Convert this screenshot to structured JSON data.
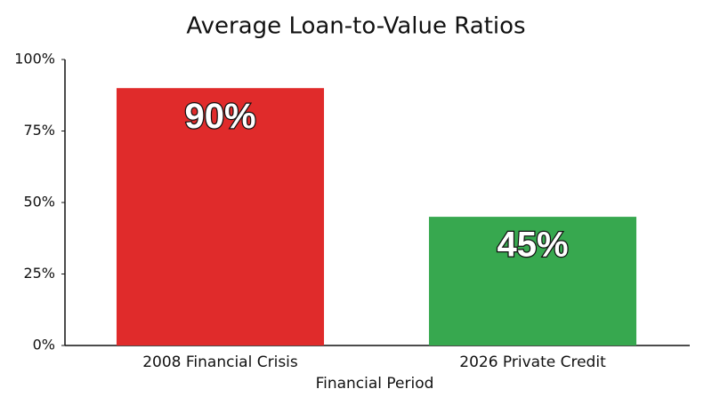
{
  "chart_data": {
    "type": "bar",
    "title": "Average Loan-to-Value Ratios",
    "x_label": "Financial Period",
    "categories": [
      "2008 Financial Crisis",
      "2026 Private Credit"
    ],
    "values": [
      90,
      45
    ],
    "value_labels": [
      "90%",
      "45%"
    ],
    "colors": [
      "#e02b2b",
      "#37a84f"
    ],
    "ylim": [
      0,
      100
    ],
    "yticks": [
      {
        "value": 0,
        "label": "0%"
      },
      {
        "value": 25,
        "label": "25%"
      },
      {
        "value": 50,
        "label": "50%"
      },
      {
        "value": 75,
        "label": "75%"
      },
      {
        "value": 100,
        "label": "100%"
      }
    ],
    "grid": false
  }
}
